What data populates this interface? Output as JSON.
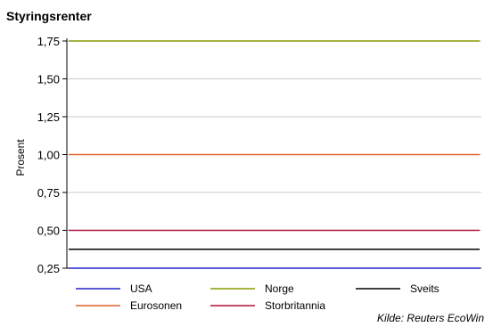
{
  "chart_data": {
    "type": "line",
    "title": "Styringsrenter",
    "ylabel": "Prosent",
    "xlabel": "",
    "ylim": [
      0.25,
      1.75
    ],
    "yticks": [
      "1,75",
      "1,50",
      "1,25",
      "1,00",
      "0,75",
      "0,50",
      "0,25"
    ],
    "ytick_values": [
      1.75,
      1.5,
      1.25,
      1.0,
      0.75,
      0.5,
      0.25
    ],
    "grid": true,
    "legend_position": "bottom",
    "series": [
      {
        "name": "USA",
        "value": 0.25,
        "color": "#2222cc"
      },
      {
        "name": "Norge",
        "value": 1.75,
        "color": "#8a9a00"
      },
      {
        "name": "Sveits",
        "value": 0.375,
        "color": "#000000"
      },
      {
        "name": "Eurosonen",
        "value": 1.0,
        "color": "#e0622a"
      },
      {
        "name": "Storbritannia",
        "value": 0.5,
        "color": "#b0103a"
      }
    ],
    "source": "Kilde: Reuters EcoWin"
  }
}
